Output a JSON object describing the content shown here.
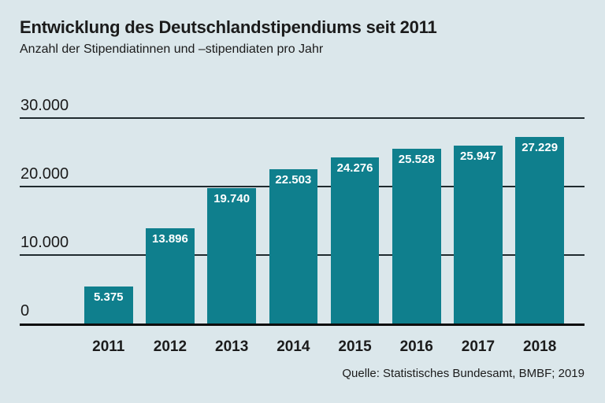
{
  "page": {
    "background_color": "#dbe7eb",
    "text_color": "#1b1b1b"
  },
  "header": {
    "title": "Entwicklung des Deutschlandstipendiums seit 2011",
    "subtitle": "Anzahl der Stipendiatinnen und –stipendiaten pro Jahr"
  },
  "source": {
    "text": "Quelle: Statistisches Bundesamt, BMBF; 2019"
  },
  "chart_data": {
    "type": "bar",
    "title": "Entwicklung des Deutschlandstipendiums seit 2011",
    "subtitle": "Anzahl der Stipendiatinnen und –stipendiaten pro Jahr",
    "categories": [
      "2011",
      "2012",
      "2013",
      "2014",
      "2015",
      "2016",
      "2017",
      "2018"
    ],
    "values": [
      5375,
      13896,
      19740,
      22503,
      24276,
      25528,
      25947,
      27229
    ],
    "value_labels": [
      "5.375",
      "13.896",
      "19.740",
      "22.503",
      "24.276",
      "25.528",
      "25.947",
      "27.229"
    ],
    "xlabel": "",
    "ylabel": "",
    "ylim": [
      0,
      30000
    ],
    "yticks": [
      {
        "value": 0,
        "label": "0"
      },
      {
        "value": 10000,
        "label": "10.000"
      },
      {
        "value": 20000,
        "label": "20.000"
      },
      {
        "value": 30000,
        "label": "30.000"
      }
    ],
    "grid": true,
    "legend": false,
    "bar_color": "#0f7f8d",
    "value_label_color": "#ffffff",
    "grid_color": "#202b2f",
    "axis_color": "#0d0d0d"
  }
}
